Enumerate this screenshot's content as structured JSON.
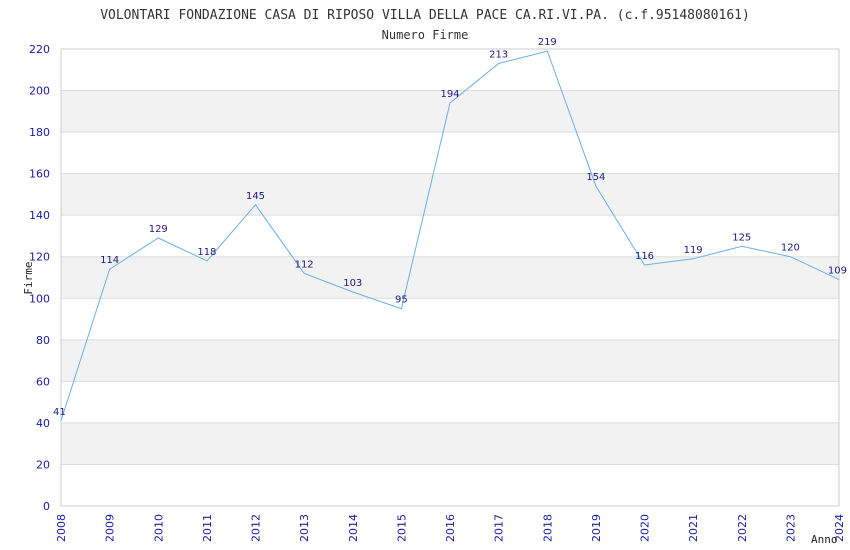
{
  "chart_data": {
    "type": "line",
    "title": "VOLONTARI FONDAZIONE CASA DI RIPOSO VILLA DELLA PACE CA.RI.VI.PA. (c.f.95148080161)",
    "subtitle": "Numero Firme",
    "xlabel": "Anno",
    "ylabel": "Firme",
    "x": [
      "2008",
      "2009",
      "2010",
      "2011",
      "2012",
      "2013",
      "2014",
      "2015",
      "2016",
      "2017",
      "2018",
      "2019",
      "2020",
      "2021",
      "2022",
      "2023",
      "2024"
    ],
    "values": [
      41,
      114,
      129,
      118,
      145,
      112,
      103,
      95,
      194,
      213,
      219,
      154,
      116,
      119,
      125,
      120,
      109
    ],
    "ylim": [
      0,
      220
    ],
    "yticks": [
      0,
      20,
      40,
      60,
      80,
      100,
      120,
      140,
      160,
      180,
      200,
      220
    ],
    "grid": true,
    "colors": {
      "line": "#6aaee8",
      "ticks": "#1a1aa6",
      "labels": "#1a1a80",
      "band": "#f2f2f2"
    }
  }
}
